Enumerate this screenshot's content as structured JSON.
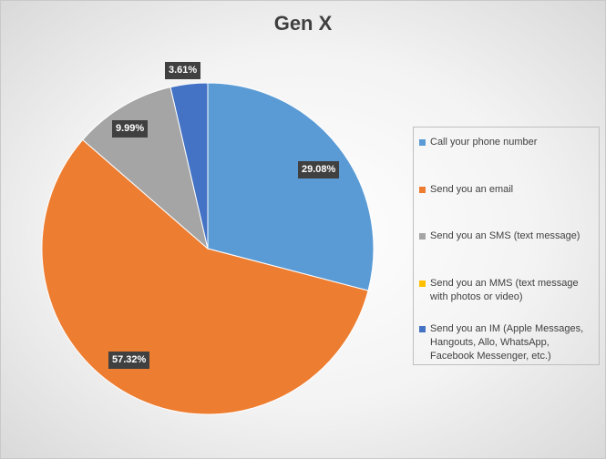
{
  "chart_data": {
    "type": "pie",
    "title": "Gen X",
    "categories": [
      "Call your phone number",
      "Send you an email",
      "Send you an SMS (text message)",
      "Send you an MMS (text message with photos or video)",
      "Send you an IM (Apple Messages, Hangouts, Allo, WhatsApp, Facebook Messenger, etc.)"
    ],
    "values": [
      29.08,
      57.32,
      9.99,
      0,
      3.61
    ],
    "data_labels": [
      "29.08%",
      "57.32%",
      "9.99%",
      "",
      "3.61%"
    ],
    "colors": [
      "#5b9bd5",
      "#ed7d31",
      "#a5a5a5",
      "#ffc000",
      "#4472c4"
    ],
    "legend_position": "right",
    "unit": "%"
  }
}
